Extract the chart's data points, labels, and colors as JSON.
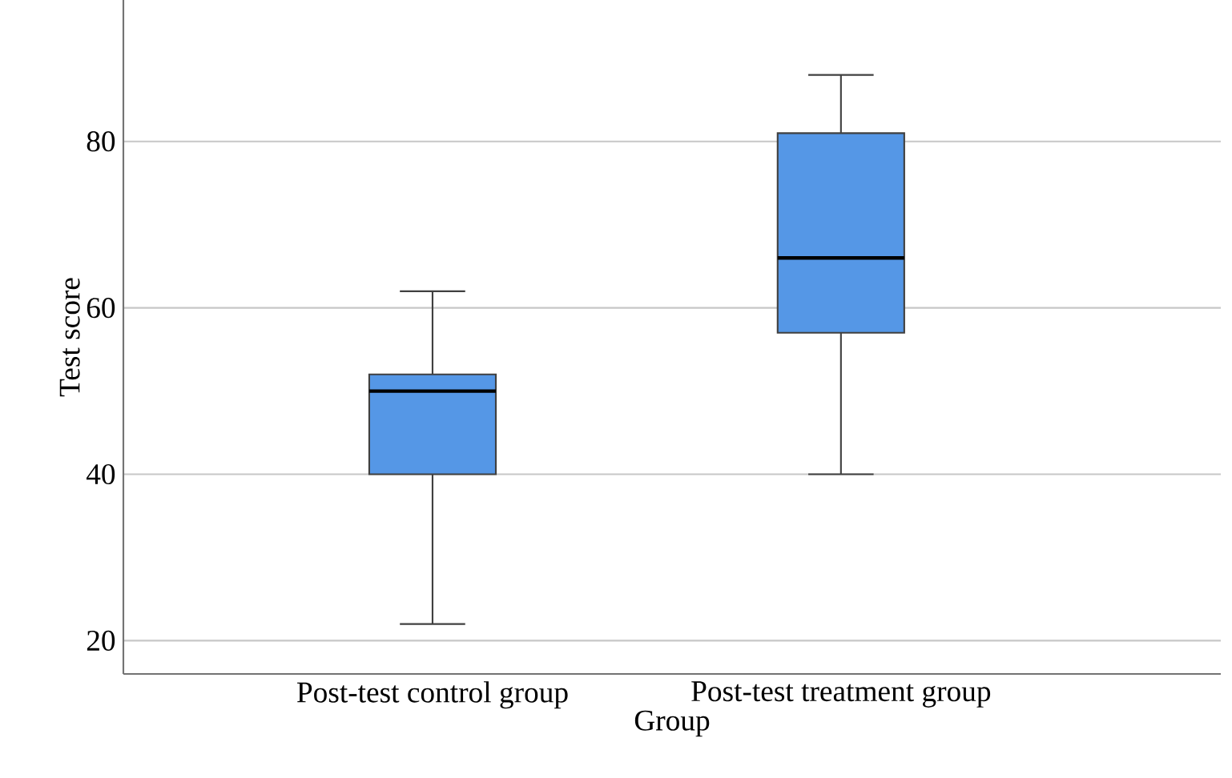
{
  "chart_data": {
    "type": "box",
    "xlabel": "Group",
    "ylabel": "Test score",
    "categories": [
      "Post-test control group",
      "Post-test treatment group"
    ],
    "series": [
      {
        "color": "#5597e6",
        "boxes": [
          {
            "low": 22,
            "q1": 40,
            "median": 50,
            "q3": 52,
            "high": 62
          },
          {
            "low": 40,
            "q1": 57,
            "median": 66,
            "q3": 81,
            "high": 88
          }
        ]
      }
    ],
    "ylim": [
      16,
      97
    ],
    "yticks": [
      20,
      40,
      60,
      80
    ],
    "grid": "y"
  }
}
